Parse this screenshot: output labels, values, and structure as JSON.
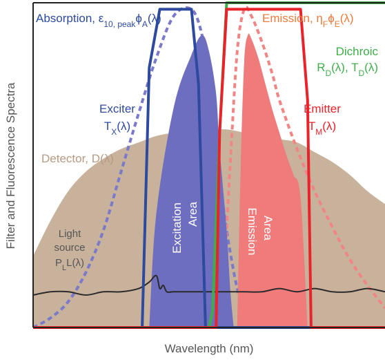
{
  "chart_data": {
    "type": "area",
    "title": "",
    "xlabel": "Wavelength (nm)",
    "ylabel": "Filter and Fluorescence Spectra",
    "x_range": [
      0,
      100
    ],
    "y_range": [
      0,
      100
    ],
    "grid": false,
    "legend": "none",
    "series": [
      {
        "key": "detector",
        "label": "Detector, D(λ)",
        "color": "#c9b29c",
        "style": "filled-area",
        "x": [
          0,
          5,
          10,
          15,
          20,
          25,
          30,
          35,
          40,
          45,
          50,
          55,
          60,
          65,
          70,
          75,
          80,
          85,
          90,
          95,
          100
        ],
        "y": [
          22,
          33,
          42,
          48,
          52,
          55,
          57,
          59,
          60,
          61,
          61,
          61,
          60,
          59,
          58,
          57,
          54,
          51,
          47,
          42,
          38
        ]
      },
      {
        "key": "absorption",
        "label": "Absorption, ε10, peakϕA(λ)",
        "color": "#7b79c9",
        "style": "dashed",
        "x": [
          0,
          5,
          10,
          15,
          20,
          25,
          30,
          35,
          40,
          45,
          48,
          50,
          52,
          55,
          58,
          60
        ],
        "y": [
          0,
          3,
          8,
          17,
          30,
          48,
          66,
          83,
          96,
          98,
          90,
          75,
          55,
          30,
          12,
          6
        ]
      },
      {
        "key": "emission",
        "label": "Emission, ηFϕE(λ)",
        "color": "#f18585",
        "style": "dashed",
        "x": [
          54,
          56,
          58,
          60,
          62,
          65,
          68,
          70,
          75,
          80,
          85,
          90,
          95,
          100
        ],
        "y": [
          10,
          50,
          85,
          98,
          96,
          88,
          78,
          70,
          55,
          42,
          31,
          21,
          13,
          6
        ]
      },
      {
        "key": "excitation_area",
        "label": "Excitation Area",
        "color": "#6e6ec0",
        "style": "filled-area",
        "x": [
          33,
          35,
          40,
          45,
          48,
          50,
          52,
          53,
          55,
          56,
          57
        ],
        "y": [
          0,
          35,
          68,
          84,
          90,
          85,
          72,
          55,
          30,
          12,
          0
        ]
      },
      {
        "key": "emission_area",
        "label": "Emission Area",
        "color": "#f07b7b",
        "style": "filled-area",
        "x": [
          58,
          59,
          60,
          61,
          62,
          64,
          66,
          68,
          70,
          72,
          74,
          76,
          78
        ],
        "y": [
          0,
          50,
          82,
          90,
          89,
          83,
          75,
          67,
          60,
          53,
          47,
          40,
          0
        ]
      },
      {
        "key": "light_source",
        "label": "Light source PL(λ)",
        "color": "#2a2a2a",
        "style": "solid",
        "x": [
          0,
          5,
          10,
          15,
          20,
          25,
          30,
          33,
          35,
          36,
          37,
          38,
          40,
          45,
          50,
          55,
          60,
          65,
          70,
          75,
          80,
          85,
          90,
          95,
          100
        ],
        "y": [
          10,
          11,
          11,
          10,
          11,
          11,
          12,
          14,
          16,
          12,
          13,
          11,
          11,
          11,
          11,
          11,
          11,
          11,
          12,
          11,
          12,
          11,
          11,
          12,
          11
        ]
      },
      {
        "key": "exciter",
        "label": "Exciter TX(λ)",
        "color": "#2e4a9e",
        "style": "solid",
        "x": [
          0,
          31,
          33,
          36,
          41,
          45,
          47,
          49,
          100
        ],
        "y": [
          0,
          0,
          80,
          98,
          98,
          98,
          75,
          0,
          0
        ]
      },
      {
        "key": "dichroic",
        "label": "Dichroic RD(λ), TD(λ)",
        "color": "#3fae49",
        "style": "solid",
        "x": [
          0,
          37,
          45,
          50,
          51,
          53,
          55,
          57,
          59,
          100
        ],
        "y": [
          0,
          0,
          0,
          0,
          5,
          60,
          100,
          100,
          100,
          100
        ]
      },
      {
        "key": "emitter",
        "label": "Emitter TM(λ)",
        "color": "#e8232a",
        "style": "solid",
        "x": [
          0,
          52,
          53,
          55,
          57,
          65,
          76,
          78,
          79,
          100
        ],
        "y": [
          0,
          0,
          60,
          98,
          98,
          98,
          98,
          70,
          0,
          0
        ]
      }
    ],
    "annotations": [
      {
        "key": "absorption",
        "text": "Absorption, ε",
        "sub": "10, peak",
        "text2": "ϕ",
        "sub2": "A",
        "text3": "(λ)",
        "color": "#2e4a9e"
      },
      {
        "key": "emission",
        "text": "Emission, η",
        "sub": "F",
        "text2": "ϕ",
        "sub2": "E",
        "text3": "(λ)",
        "color": "#f07a3c"
      },
      {
        "key": "dichroic_l1",
        "text": "Dichroic",
        "color": "#3fae49"
      },
      {
        "key": "dichroic_l2",
        "text": "R",
        "sub": "D",
        "text2": "(λ), T",
        "sub2": "D",
        "text3": "(λ)",
        "color": "#3fae49"
      },
      {
        "key": "exciter_l1",
        "text": "Exciter",
        "color": "#2e4a9e"
      },
      {
        "key": "exciter_l2",
        "text": "T",
        "sub": "X",
        "text2": "(λ)",
        "color": "#2e4a9e"
      },
      {
        "key": "emitter_l1",
        "text": "Emitter",
        "color": "#e8232a"
      },
      {
        "key": "emitter_l2",
        "text": "T",
        "sub": "M",
        "text2": "(λ)",
        "color": "#e8232a"
      },
      {
        "key": "detector",
        "text": "Detector, D(λ)",
        "color": "#b89a82"
      },
      {
        "key": "light_l1",
        "text": "Light",
        "color": "#555555"
      },
      {
        "key": "light_l2",
        "text": "source",
        "color": "#555555"
      },
      {
        "key": "light_l3",
        "text": "P",
        "sub": "L",
        "text2": "L(λ)",
        "color": "#555555"
      },
      {
        "key": "excitation_area_l1",
        "text": "Excitation",
        "color": "#ffffff"
      },
      {
        "key": "excitation_area_l2",
        "text": "Area",
        "color": "#ffffff"
      },
      {
        "key": "emission_area_l1",
        "text": "Emission",
        "color": "#ffffff"
      },
      {
        "key": "emission_area_l2",
        "text": "Area",
        "color": "#ffffff"
      }
    ]
  }
}
